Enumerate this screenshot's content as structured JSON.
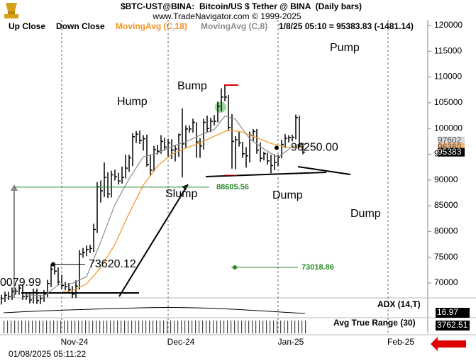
{
  "chart_data": {
    "type": "ohlc",
    "title": "$BTC-UST@BINA:  Bitcoin/US $ Tether @ BINA  (Daily bars)",
    "subtitle": "www.TradeNavigator.com © 1999-2025",
    "legend": [
      "Up Close",
      "Down Close"
    ],
    "quote": "1/8/25 05:10 = 95383.83 (-1481.14)",
    "timestamp": "01/08/2025 05:11:22",
    "bar_color": "#000000",
    "high": [
      67700,
      68300,
      68300,
      69100,
      69100,
      69700,
      69700,
      68100,
      68100,
      68900,
      68900,
      67700,
      68600,
      70600,
      73600,
      73400,
      73000,
      71600,
      70200,
      70000,
      69400,
      70500,
      76400,
      76800,
      77300,
      77400,
      81500,
      89600,
      89900,
      93400,
      91500,
      91800,
      92000,
      91400,
      92600,
      94900,
      94900,
      99100,
      99500,
      99600,
      98700,
      98800,
      94800,
      96600,
      96800,
      98700,
      98200,
      98000,
      97900,
      96700,
      99000,
      103900,
      100600,
      100600,
      101900,
      101200,
      98100,
      101900,
      102500,
      102100,
      102600,
      105200,
      107800,
      108300,
      106500,
      102800,
      98500,
      99500,
      97400,
      96400,
      99400,
      99900,
      99900,
      97300,
      95500,
      95300,
      94900,
      95000,
      94900,
      97800,
      98900,
      98700,
      98800,
      102700,
      102500,
      97200
    ],
    "low": [
      65800,
      66300,
      66700,
      66700,
      67700,
      67700,
      66700,
      66700,
      66000,
      66000,
      65900,
      65900,
      66300,
      67200,
      69200,
      71600,
      69500,
      68800,
      68600,
      68000,
      67100,
      67100,
      68700,
      74900,
      75200,
      75800,
      76000,
      79700,
      85600,
      86700,
      86500,
      86600,
      89900,
      89100,
      89300,
      90300,
      91600,
      92700,
      97200,
      97000,
      95700,
      92600,
      90800,
      91600,
      94900,
      95100,
      95700,
      94600,
      94100,
      93600,
      94500,
      90500,
      96300,
      99200,
      99200,
      94300,
      94300,
      95900,
      99200,
      99300,
      100600,
      101200,
      103300,
      105300,
      99500,
      92200,
      92100,
      96500,
      94300,
      92400,
      93400,
      97600,
      95100,
      93500,
      93800,
      93000,
      91300,
      91900,
      92700,
      94200,
      96200,
      97300,
      97500,
      97900,
      96200,
      95000
    ],
    "close": [
      67000,
      67600,
      67400,
      68400,
      68400,
      69000,
      67400,
      67400,
      66700,
      68200,
      66600,
      67000,
      67900,
      69900,
      72700,
      72300,
      70200,
      69500,
      69300,
      68700,
      67800,
      69400,
      75600,
      75900,
      76500,
      76700,
      80400,
      88700,
      87900,
      90500,
      87300,
      91000,
      90600,
      89800,
      90500,
      92300,
      94300,
      98400,
      98900,
      97700,
      98000,
      93000,
      91900,
      95900,
      95600,
      97500,
      96400,
      97200,
      95800,
      96000,
      98800,
      97000,
      99900,
      99900,
      101200,
      97400,
      96600,
      101200,
      100000,
      101400,
      101400,
      104300,
      106100,
      106100,
      100200,
      97500,
      97800,
      97200,
      95100,
      94700,
      98700,
      99400,
      95800,
      94200,
      95100,
      93700,
      92800,
      93400,
      94400,
      96900,
      98100,
      98200,
      98300,
      102100,
      96900,
      95400
    ],
    "series": [
      {
        "name": "MovingAvg (C,18)",
        "color": "#f0931e",
        "x": [
          17,
          20,
          24,
          28,
          32,
          36,
          40,
          44,
          48,
          52,
          56,
          60,
          64,
          68,
          72,
          76,
          80,
          85
        ],
        "values": [
          68300,
          68500,
          69800,
          73000,
          77500,
          83500,
          89000,
          92700,
          95000,
          96200,
          97200,
          98500,
          99700,
          99300,
          98200,
          97100,
          96400,
          96360
        ]
      },
      {
        "name": "MovingAvg (C,8)",
        "color": "#8c8c8c",
        "x": [
          7,
          12,
          16,
          20,
          24,
          28,
          32,
          36,
          40,
          44,
          48,
          52,
          56,
          60,
          63,
          66,
          70,
          74,
          78,
          82,
          85
        ],
        "values": [
          67700,
          67500,
          69600,
          69900,
          71200,
          78000,
          85200,
          90200,
          94500,
          95200,
          96500,
          97400,
          98700,
          99800,
          102400,
          101800,
          98000,
          96000,
          94400,
          96500,
          97200
        ]
      }
    ],
    "xlim": [
      -0.4,
      120
    ],
    "xticks": [
      {
        "value": 17,
        "label": "Nov-24"
      },
      {
        "value": 47,
        "label": "Dec-24"
      },
      {
        "value": 78,
        "label": "Jan-25"
      },
      {
        "value": 109,
        "label": "Feb-25"
      }
    ],
    "ylim": [
      67100,
      121100
    ],
    "yticks": [
      70000,
      75000,
      80000,
      85000,
      90000,
      95000,
      100000,
      105000,
      110000,
      115000,
      120000
    ],
    "levels": [
      88605.56,
      73018.86,
      {
        "value": 96250,
        "label": "96250.00"
      },
      73620.12
    ],
    "annotations": [
      "Hump",
      "Bump",
      "Pump",
      "Slump",
      "Dump",
      "Dump",
      "0079.99"
    ],
    "price_tags": [
      97602,
      96360,
      95383
    ],
    "indicators": [
      {
        "name": "ADX (14,T)",
        "value": 16.97
      },
      {
        "name": "Avg True Range (30)",
        "value": 3762.51
      }
    ]
  }
}
